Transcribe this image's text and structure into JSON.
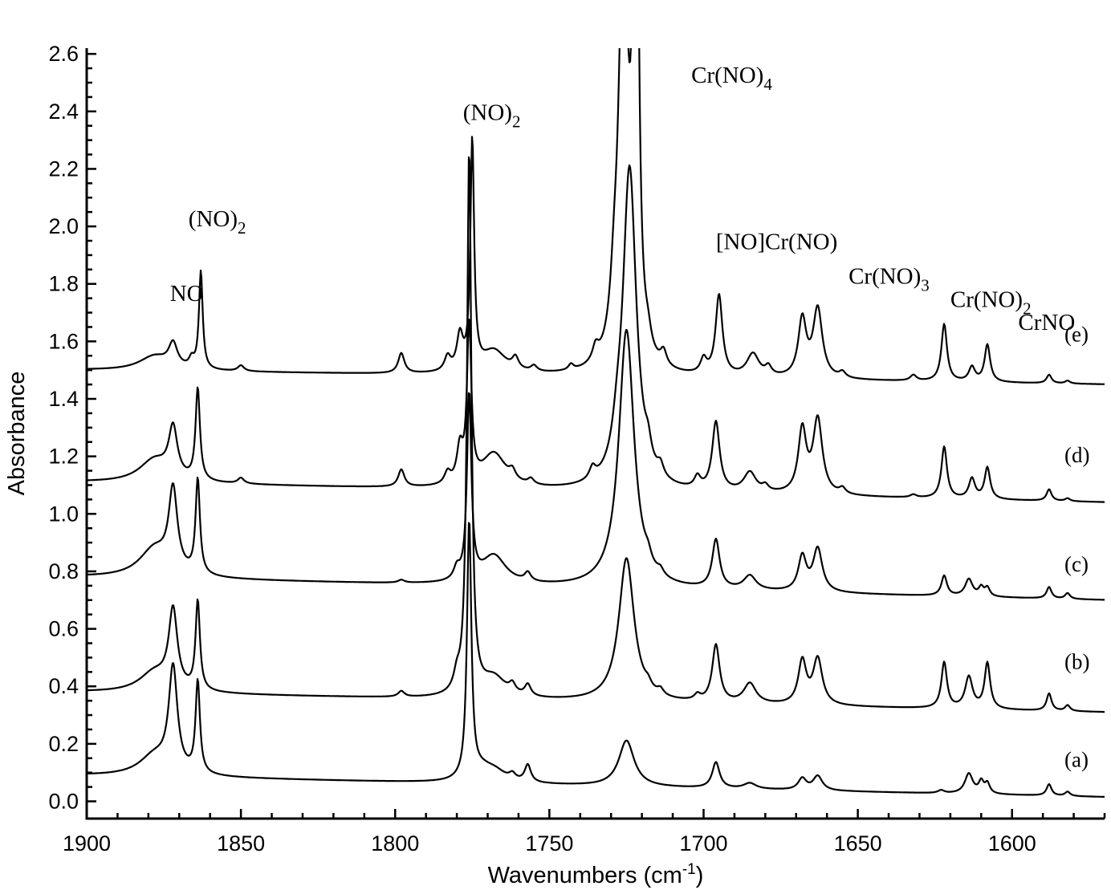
{
  "chart_data": {
    "type": "line",
    "xlabel": "Wavenumbers (cm",
    "xlabel_sup": "-1",
    "xlabel_close": ")",
    "ylabel": "Absorbance",
    "xlim": [
      1900,
      1570
    ],
    "x_reversed": true,
    "ylim": [
      -0.06,
      2.62
    ],
    "x_ticks": [
      1900,
      1850,
      1800,
      1750,
      1700,
      1650,
      1600
    ],
    "y_ticks": [
      0.0,
      0.2,
      0.4,
      0.6,
      0.8,
      1.0,
      1.2,
      1.4,
      1.6,
      1.8,
      2.0,
      2.2,
      2.4,
      2.6
    ],
    "y_tick_labels": [
      "0.0",
      "0.2",
      "0.4",
      "0.6",
      "0.8",
      "1.0",
      "1.2",
      "1.4",
      "1.6",
      "1.8",
      "2.0",
      "2.2",
      "2.4",
      "2.6"
    ],
    "grid": false,
    "peak_width": 1.2,
    "series": [
      {
        "name": "(a)",
        "baseline_start": 0.09,
        "baseline_end": 0.015,
        "peaks": [
          [
            1878,
            0.07,
            5
          ],
          [
            1872,
            0.36,
            1.4
          ],
          [
            1864,
            0.32,
            0.7
          ],
          [
            1776,
            0.9,
            0.7
          ],
          [
            1772,
            0.03,
            3
          ],
          [
            1768,
            0.04,
            4
          ],
          [
            1762,
            0.02,
            1
          ],
          [
            1757,
            0.06,
            1
          ],
          [
            1725,
            0.16,
            2.5
          ],
          [
            1696,
            0.09,
            1.2
          ],
          [
            1685,
            0.02,
            2
          ],
          [
            1668,
            0.04,
            1.3
          ],
          [
            1663,
            0.05,
            1.5
          ],
          [
            1623,
            0.01,
            1
          ],
          [
            1614,
            0.07,
            1.3
          ],
          [
            1610,
            0.04,
            0.8
          ],
          [
            1608,
            0.035,
            0.8
          ],
          [
            1588,
            0.04,
            0.8
          ],
          [
            1582,
            0.015,
            0.8
          ]
        ]
      },
      {
        "name": "(b)",
        "baseline_start": 0.38,
        "baseline_end": 0.31,
        "peaks": [
          [
            1878,
            0.07,
            5
          ],
          [
            1872,
            0.27,
            1.4
          ],
          [
            1864,
            0.31,
            0.7
          ],
          [
            1798,
            0.02,
            1
          ],
          [
            1780,
            0.05,
            1
          ],
          [
            1776,
            1.9,
            0.7
          ],
          [
            1768,
            0.07,
            4
          ],
          [
            1762,
            0.03,
            1
          ],
          [
            1757,
            0.04,
            1
          ],
          [
            1725,
            0.5,
            2.5
          ],
          [
            1718,
            0.02,
            1
          ],
          [
            1714,
            0.02,
            1
          ],
          [
            1702,
            0.02,
            1
          ],
          [
            1696,
            0.2,
            1.2
          ],
          [
            1685,
            0.07,
            2
          ],
          [
            1668,
            0.15,
            1.3
          ],
          [
            1663,
            0.16,
            1.5
          ],
          [
            1622,
            0.16,
            0.9
          ],
          [
            1614,
            0.11,
            1.2
          ],
          [
            1608,
            0.16,
            0.9
          ],
          [
            1588,
            0.06,
            0.8
          ],
          [
            1582,
            0.02,
            0.8
          ]
        ]
      },
      {
        "name": "(c)",
        "baseline_start": 0.78,
        "baseline_end": 0.7,
        "peaks": [
          [
            1878,
            0.1,
            5
          ],
          [
            1872,
            0.28,
            1.4
          ],
          [
            1864,
            0.33,
            0.7
          ],
          [
            1798,
            0.01,
            1
          ],
          [
            1780,
            0.04,
            1
          ],
          [
            1776,
            0.65,
            0.7
          ],
          [
            1768,
            0.1,
            4
          ],
          [
            1757,
            0.03,
            1
          ],
          [
            1725,
            0.9,
            2.5
          ],
          [
            1718,
            0.03,
            1
          ],
          [
            1714,
            0.02,
            1
          ],
          [
            1696,
            0.17,
            1.2
          ],
          [
            1685,
            0.05,
            2
          ],
          [
            1668,
            0.12,
            1.3
          ],
          [
            1663,
            0.15,
            1.5
          ],
          [
            1622,
            0.07,
            0.9
          ],
          [
            1614,
            0.06,
            1.2
          ],
          [
            1610,
            0.03,
            0.8
          ],
          [
            1608,
            0.03,
            0.8
          ],
          [
            1588,
            0.04,
            0.8
          ],
          [
            1582,
            0.02,
            0.8
          ]
        ]
      },
      {
        "name": "(d)",
        "baseline_start": 1.11,
        "baseline_end": 1.04,
        "peaks": [
          [
            1878,
            0.08,
            5
          ],
          [
            1872,
            0.17,
            1.4
          ],
          [
            1864,
            0.32,
            0.7
          ],
          [
            1850,
            0.02,
            1
          ],
          [
            1798,
            0.06,
            1
          ],
          [
            1783,
            0.04,
            1
          ],
          [
            1779,
            0.12,
            1
          ],
          [
            1776,
            0.55,
            0.7
          ],
          [
            1768,
            0.12,
            4
          ],
          [
            1762,
            0.03,
            1
          ],
          [
            1756,
            0.02,
            1
          ],
          [
            1736,
            0.04,
            1
          ],
          [
            1728,
            0.08,
            1.5
          ],
          [
            1724,
            1.12,
            2.2
          ],
          [
            1718,
            0.06,
            1
          ],
          [
            1714,
            0.04,
            1
          ],
          [
            1702,
            0.04,
            1
          ],
          [
            1696,
            0.24,
            1.2
          ],
          [
            1685,
            0.07,
            2
          ],
          [
            1680,
            0.02,
            1
          ],
          [
            1668,
            0.22,
            1.3
          ],
          [
            1663,
            0.26,
            1.5
          ],
          [
            1655,
            0.02,
            1
          ],
          [
            1632,
            0.01,
            1
          ],
          [
            1622,
            0.18,
            0.9
          ],
          [
            1613,
            0.07,
            1
          ],
          [
            1608,
            0.11,
            0.9
          ],
          [
            1588,
            0.04,
            0.8
          ],
          [
            1582,
            0.01,
            0.8
          ]
        ]
      },
      {
        "name": "(e)",
        "baseline_start": 1.5,
        "baseline_end": 1.45,
        "peaks": [
          [
            1878,
            0.05,
            5
          ],
          [
            1872,
            0.08,
            1.4
          ],
          [
            1866,
            0.03,
            0.8
          ],
          [
            1863,
            0.34,
            0.6
          ],
          [
            1850,
            0.02,
            1
          ],
          [
            1798,
            0.07,
            1
          ],
          [
            1783,
            0.05,
            1
          ],
          [
            1779,
            0.12,
            1
          ],
          [
            1775,
            0.8,
            0.6
          ],
          [
            1768,
            0.08,
            4
          ],
          [
            1761,
            0.04,
            1
          ],
          [
            1755,
            0.02,
            1
          ],
          [
            1743,
            0.02,
            0.8
          ],
          [
            1735,
            0.05,
            1
          ],
          [
            1729,
            0.15,
            1.2
          ],
          [
            1726,
            1.5,
            1.5
          ],
          [
            1722,
            2.7,
            0.7
          ],
          [
            1718,
            0.05,
            1
          ],
          [
            1713,
            0.05,
            1
          ],
          [
            1700,
            0.05,
            1
          ],
          [
            1695,
            0.28,
            1.1
          ],
          [
            1684,
            0.08,
            2
          ],
          [
            1679,
            0.03,
            1
          ],
          [
            1668,
            0.2,
            1.3
          ],
          [
            1663,
            0.24,
            1.5
          ],
          [
            1655,
            0.02,
            1
          ],
          [
            1632,
            0.02,
            1
          ],
          [
            1622,
            0.2,
            0.9
          ],
          [
            1613,
            0.05,
            1
          ],
          [
            1608,
            0.13,
            0.9
          ],
          [
            1588,
            0.03,
            0.8
          ],
          [
            1582,
            0.01,
            0.8
          ]
        ]
      }
    ],
    "annotations": [
      {
        "text": "NO",
        "sub": "",
        "x": 1873,
        "y": 1.74
      },
      {
        "text": "(NO)",
        "sub": "2",
        "x": 1867,
        "y": 2.0
      },
      {
        "text": "(NO)",
        "sub": "2",
        "x": 1778,
        "y": 2.37
      },
      {
        "text": "Cr(NO)",
        "sub": "4",
        "x": 1704,
        "y": 2.5
      },
      {
        "text": "[NO]Cr(NO)",
        "sub": "",
        "x": 1696,
        "y": 1.92
      },
      {
        "text": "Cr(NO)",
        "sub": "3",
        "x": 1653,
        "y": 1.8
      },
      {
        "text": "Cr(NO)",
        "sub": "2",
        "x": 1620,
        "y": 1.72
      },
      {
        "text": "CrNO",
        "sub": "",
        "x": 1598,
        "y": 1.64
      }
    ],
    "trace_labels": [
      {
        "text": "(a)",
        "x": 1583,
        "y": 0.12
      },
      {
        "text": "(b)",
        "x": 1583,
        "y": 0.46
      },
      {
        "text": "(c)",
        "x": 1583,
        "y": 0.8
      },
      {
        "text": "(d)",
        "x": 1583,
        "y": 1.18
      },
      {
        "text": "(e)",
        "x": 1583,
        "y": 1.6
      }
    ]
  }
}
